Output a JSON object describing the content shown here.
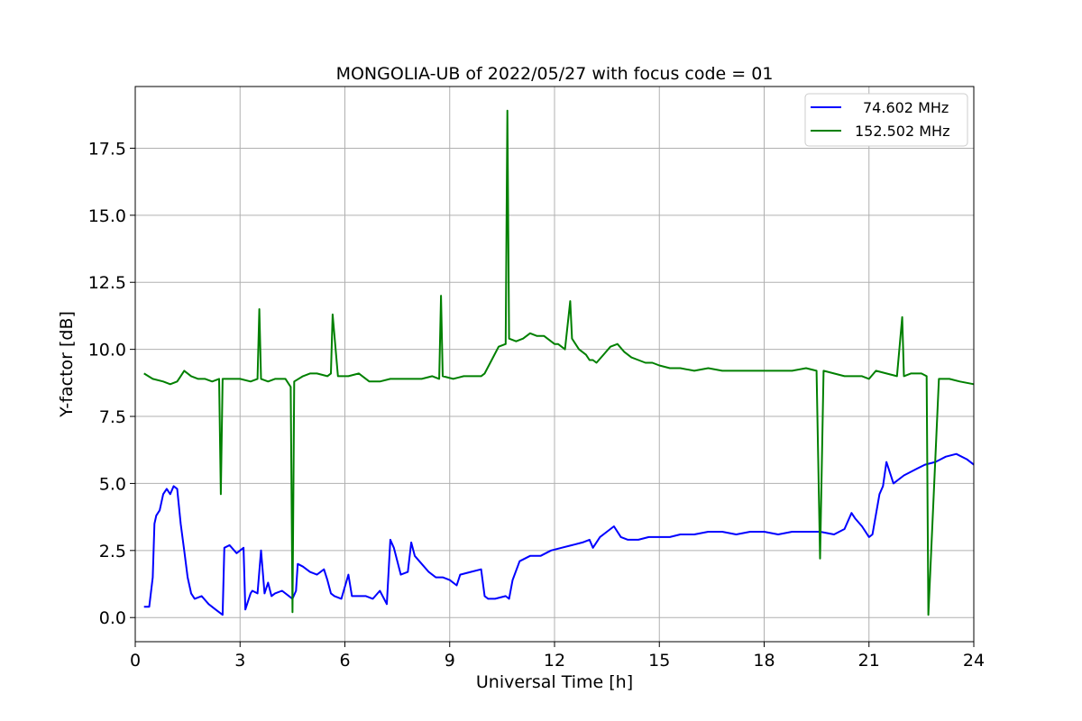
{
  "chart_data": {
    "type": "line",
    "title": "MONGOLIA-UB of 2022/05/27 with focus code = 01",
    "xlabel": "Universal Time [h]",
    "ylabel": "Y-factor [dB]",
    "xlim": [
      0,
      24
    ],
    "ylim": [
      -0.9,
      19.8
    ],
    "xticks": [
      0,
      3,
      6,
      9,
      12,
      15,
      18,
      21,
      24
    ],
    "xtick_labels": [
      "0",
      "3",
      "6",
      "9",
      "12",
      "15",
      "18",
      "21",
      "24"
    ],
    "yticks": [
      0,
      2.5,
      5,
      7.5,
      10,
      12.5,
      15,
      17.5
    ],
    "ytick_labels": [
      "0.0",
      "2.5",
      "5.0",
      "7.5",
      "10.0",
      "12.5",
      "15.0",
      "17.5"
    ],
    "grid": true,
    "legend_position": "top-right",
    "series": [
      {
        "name": "74.602 MHz",
        "color": "#0000ff",
        "x": [
          0.25,
          0.4,
          0.5,
          0.55,
          0.6,
          0.7,
          0.8,
          0.9,
          1.0,
          1.1,
          1.2,
          1.3,
          1.4,
          1.5,
          1.6,
          1.7,
          1.9,
          2.1,
          2.3,
          2.5,
          2.55,
          2.7,
          2.9,
          3.1,
          3.15,
          3.3,
          3.35,
          3.5,
          3.6,
          3.7,
          3.8,
          3.9,
          4.0,
          4.2,
          4.4,
          4.5,
          4.6,
          4.65,
          4.8,
          5.0,
          5.2,
          5.4,
          5.5,
          5.6,
          5.7,
          5.9,
          6.1,
          6.2,
          6.4,
          6.6,
          6.8,
          7.0,
          7.2,
          7.3,
          7.4,
          7.6,
          7.8,
          7.9,
          8.0,
          8.2,
          8.4,
          8.6,
          8.8,
          9.0,
          9.2,
          9.3,
          9.6,
          9.9,
          10.0,
          10.1,
          10.3,
          10.6,
          10.7,
          10.8,
          11.0,
          11.3,
          11.6,
          11.9,
          12.2,
          12.5,
          12.8,
          13.0,
          13.1,
          13.3,
          13.5,
          13.7,
          13.9,
          14.1,
          14.4,
          14.7,
          15.0,
          15.3,
          15.6,
          16.0,
          16.4,
          16.8,
          17.2,
          17.6,
          18.0,
          18.4,
          18.8,
          19.2,
          19.6,
          20.0,
          20.3,
          20.5,
          20.6,
          20.8,
          21.0,
          21.1,
          21.3,
          21.4,
          21.5,
          21.7,
          22.0,
          22.3,
          22.6,
          22.9,
          23.2,
          23.5,
          23.8,
          24.0
        ],
        "y": [
          0.4,
          0.4,
          1.5,
          3.5,
          3.8,
          4.0,
          4.6,
          4.8,
          4.6,
          4.9,
          4.8,
          3.5,
          2.5,
          1.5,
          0.9,
          0.7,
          0.8,
          0.5,
          0.3,
          0.1,
          2.6,
          2.7,
          2.4,
          2.6,
          0.3,
          0.9,
          1.0,
          0.9,
          2.5,
          0.9,
          1.3,
          0.8,
          0.9,
          1.0,
          0.8,
          0.7,
          1.0,
          2.0,
          1.9,
          1.7,
          1.6,
          1.8,
          1.4,
          0.9,
          0.8,
          0.7,
          1.6,
          0.8,
          0.8,
          0.8,
          0.7,
          1.0,
          0.5,
          2.9,
          2.6,
          1.6,
          1.7,
          2.8,
          2.3,
          2.0,
          1.7,
          1.5,
          1.5,
          1.4,
          1.2,
          1.6,
          1.7,
          1.8,
          0.8,
          0.7,
          0.7,
          0.8,
          0.7,
          1.4,
          2.1,
          2.3,
          2.3,
          2.5,
          2.6,
          2.7,
          2.8,
          2.9,
          2.6,
          3.0,
          3.2,
          3.4,
          3.0,
          2.9,
          2.9,
          3.0,
          3.0,
          3.0,
          3.1,
          3.1,
          3.2,
          3.2,
          3.1,
          3.2,
          3.2,
          3.1,
          3.2,
          3.2,
          3.2,
          3.1,
          3.3,
          3.9,
          3.7,
          3.4,
          3.0,
          3.1,
          4.6,
          4.9,
          5.8,
          5.0,
          5.3,
          5.5,
          5.7,
          5.8,
          6.0,
          6.1,
          5.9,
          5.7
        ]
      },
      {
        "name": "152.502 MHz",
        "color": "#008000",
        "x": [
          0.25,
          0.5,
          0.8,
          1.0,
          1.2,
          1.3,
          1.4,
          1.6,
          1.8,
          2.0,
          2.2,
          2.4,
          2.45,
          2.5,
          2.7,
          3.0,
          3.3,
          3.5,
          3.55,
          3.6,
          3.8,
          4.0,
          4.3,
          4.45,
          4.5,
          4.55,
          4.8,
          5.0,
          5.2,
          5.5,
          5.6,
          5.65,
          5.8,
          6.1,
          6.4,
          6.7,
          7.0,
          7.3,
          7.6,
          7.9,
          8.2,
          8.5,
          8.7,
          8.75,
          8.8,
          9.1,
          9.4,
          9.7,
          9.9,
          10.0,
          10.2,
          10.4,
          10.6,
          10.65,
          10.7,
          10.9,
          11.1,
          11.3,
          11.5,
          11.7,
          11.9,
          12.0,
          12.1,
          12.3,
          12.45,
          12.5,
          12.7,
          12.9,
          13.0,
          13.1,
          13.2,
          13.4,
          13.6,
          13.8,
          14.0,
          14.2,
          14.4,
          14.6,
          14.8,
          15.0,
          15.3,
          15.6,
          16.0,
          16.4,
          16.8,
          17.2,
          17.6,
          18.0,
          18.4,
          18.8,
          19.2,
          19.5,
          19.6,
          19.7,
          20.0,
          20.3,
          20.6,
          20.8,
          21.0,
          21.2,
          21.5,
          21.8,
          21.95,
          22.0,
          22.2,
          22.5,
          22.65,
          22.7,
          23.0,
          23.3,
          23.6,
          24.0
        ],
        "y": [
          9.1,
          8.9,
          8.8,
          8.7,
          8.8,
          9.0,
          9.2,
          9.0,
          8.9,
          8.9,
          8.8,
          8.9,
          4.6,
          8.9,
          8.9,
          8.9,
          8.8,
          8.9,
          11.5,
          8.9,
          8.8,
          8.9,
          8.9,
          8.6,
          0.2,
          8.8,
          9.0,
          9.1,
          9.1,
          9.0,
          9.1,
          11.3,
          9.0,
          9.0,
          9.1,
          8.8,
          8.8,
          8.9,
          8.9,
          8.9,
          8.9,
          9.0,
          8.9,
          12.0,
          9.0,
          8.9,
          9.0,
          9.0,
          9.0,
          9.1,
          9.6,
          10.1,
          10.2,
          18.9,
          10.4,
          10.3,
          10.4,
          10.6,
          10.5,
          10.5,
          10.3,
          10.2,
          10.2,
          10.0,
          11.8,
          10.4,
          10.0,
          9.8,
          9.6,
          9.6,
          9.5,
          9.8,
          10.1,
          10.2,
          9.9,
          9.7,
          9.6,
          9.5,
          9.5,
          9.4,
          9.3,
          9.3,
          9.2,
          9.3,
          9.2,
          9.2,
          9.2,
          9.2,
          9.2,
          9.2,
          9.3,
          9.2,
          2.2,
          9.2,
          9.1,
          9.0,
          9.0,
          9.0,
          8.9,
          9.2,
          9.1,
          9.0,
          11.2,
          9.0,
          9.1,
          9.1,
          9.0,
          0.1,
          8.9,
          8.9,
          8.8,
          8.7
        ]
      }
    ]
  }
}
